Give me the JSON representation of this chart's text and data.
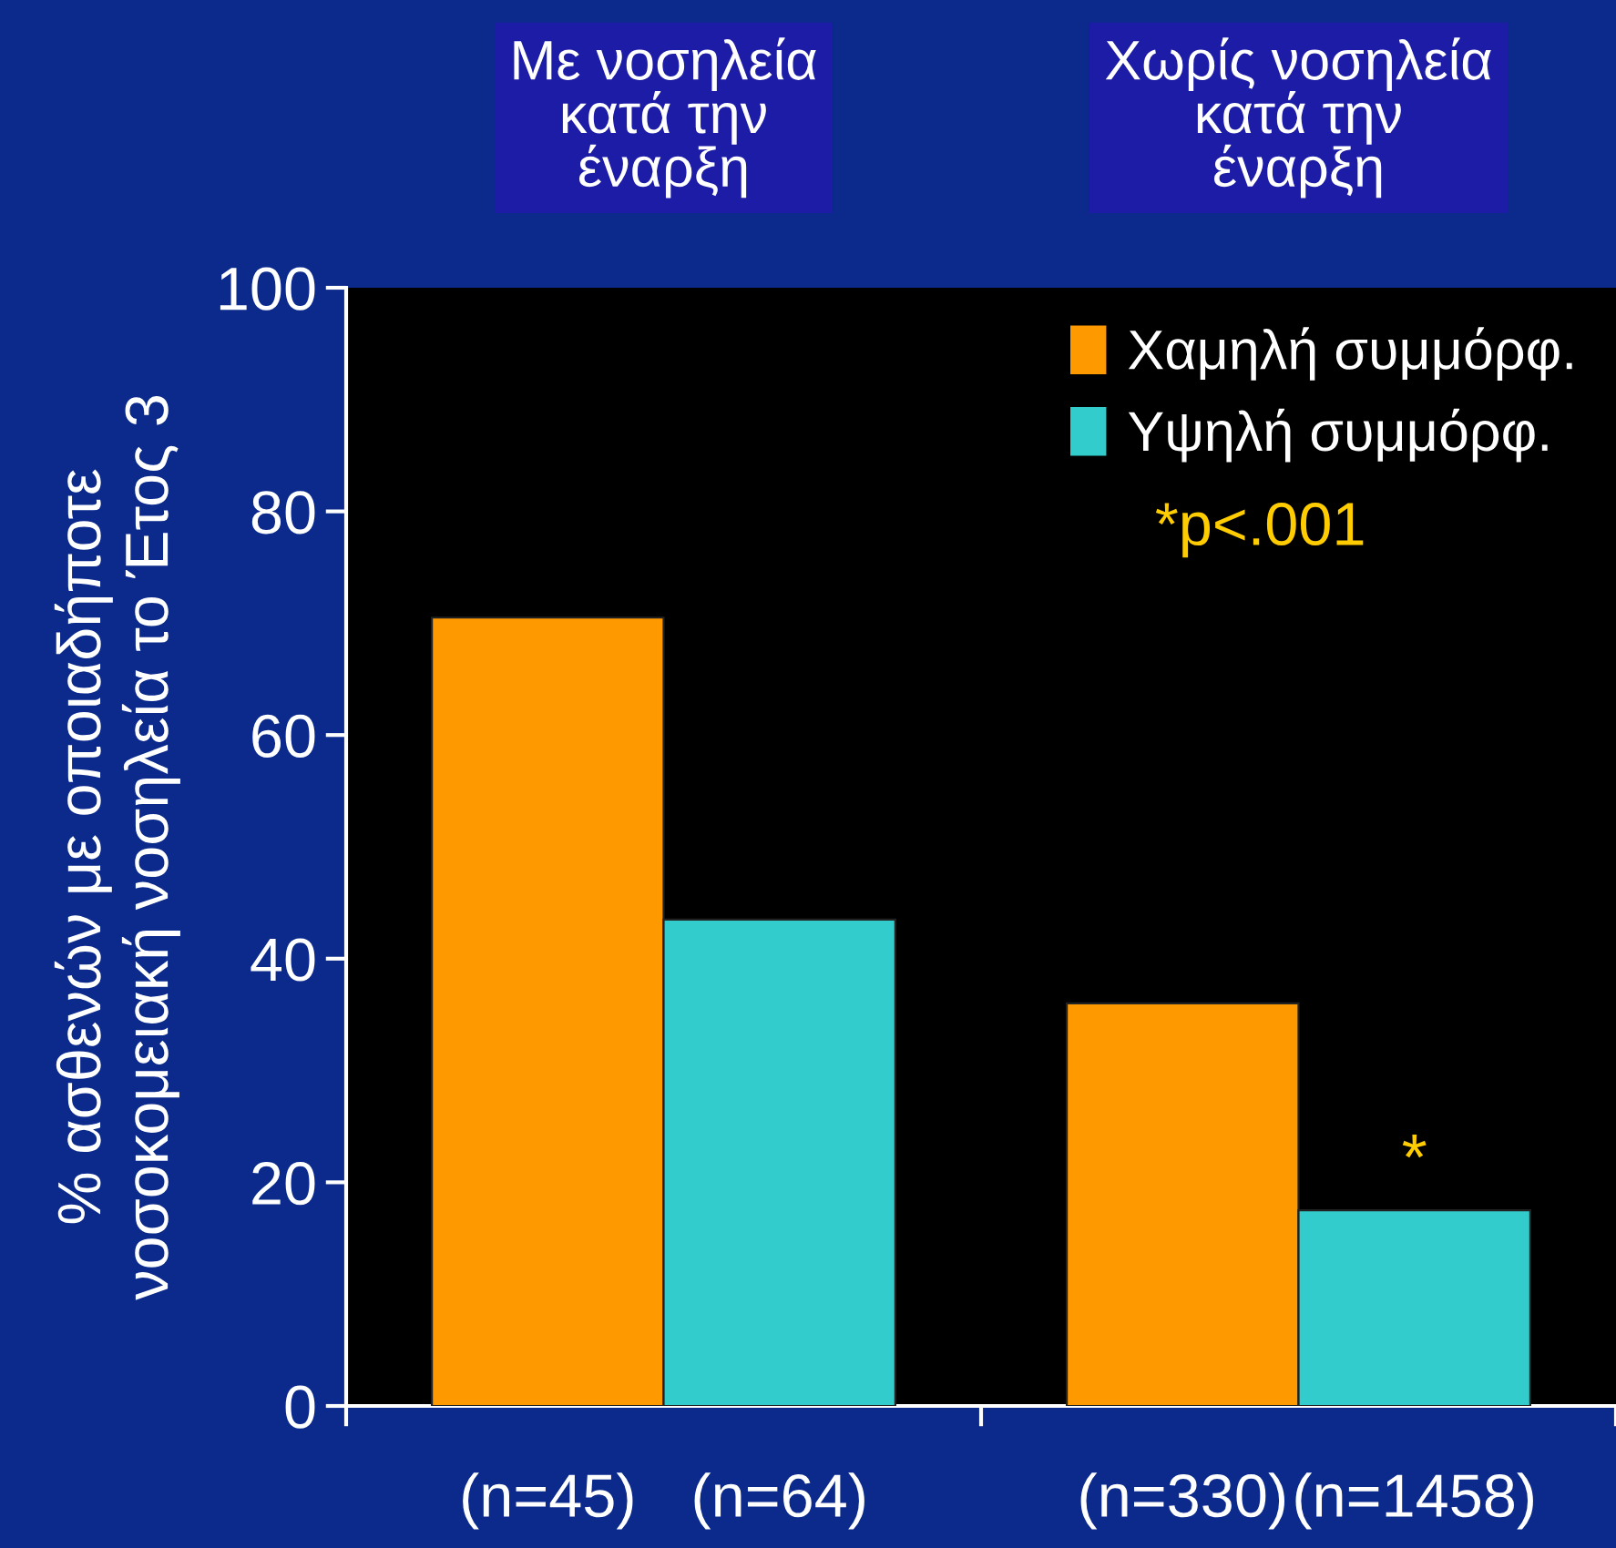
{
  "chart_data": {
    "type": "bar",
    "categories": [
      "Με νοσηλεία\nκατά την\nέναρξη",
      "Χωρίς νοσηλεία\nκατά την\nέναρξη"
    ],
    "ylabel": "% ασθενών με οποιαδήποτε\nνοσοκομειακή νοσηλεία το Έτος 3",
    "series": [
      {
        "name": "Χαμηλή συμμόρφ.",
        "color": "#ff9900",
        "values": [
          70.5,
          36
        ]
      },
      {
        "name": "Υψηλή συμμόρφ.",
        "color": "#33cccc",
        "values": [
          43.5,
          17.5
        ]
      }
    ],
    "ylim": [
      0,
      100
    ],
    "yticks": [
      0,
      20,
      40,
      60,
      80,
      100
    ],
    "grid": false,
    "legend": "top right",
    "annotations": [
      "*p<.001",
      {
        "text": "*",
        "x": "Χωρίς νοσηλεία\nκατά την\nέναρξη",
        "y": 17.5
      },
      "(n=45)",
      "(n=64)",
      "(n=330)",
      "(n=1458)"
    ]
  }
}
